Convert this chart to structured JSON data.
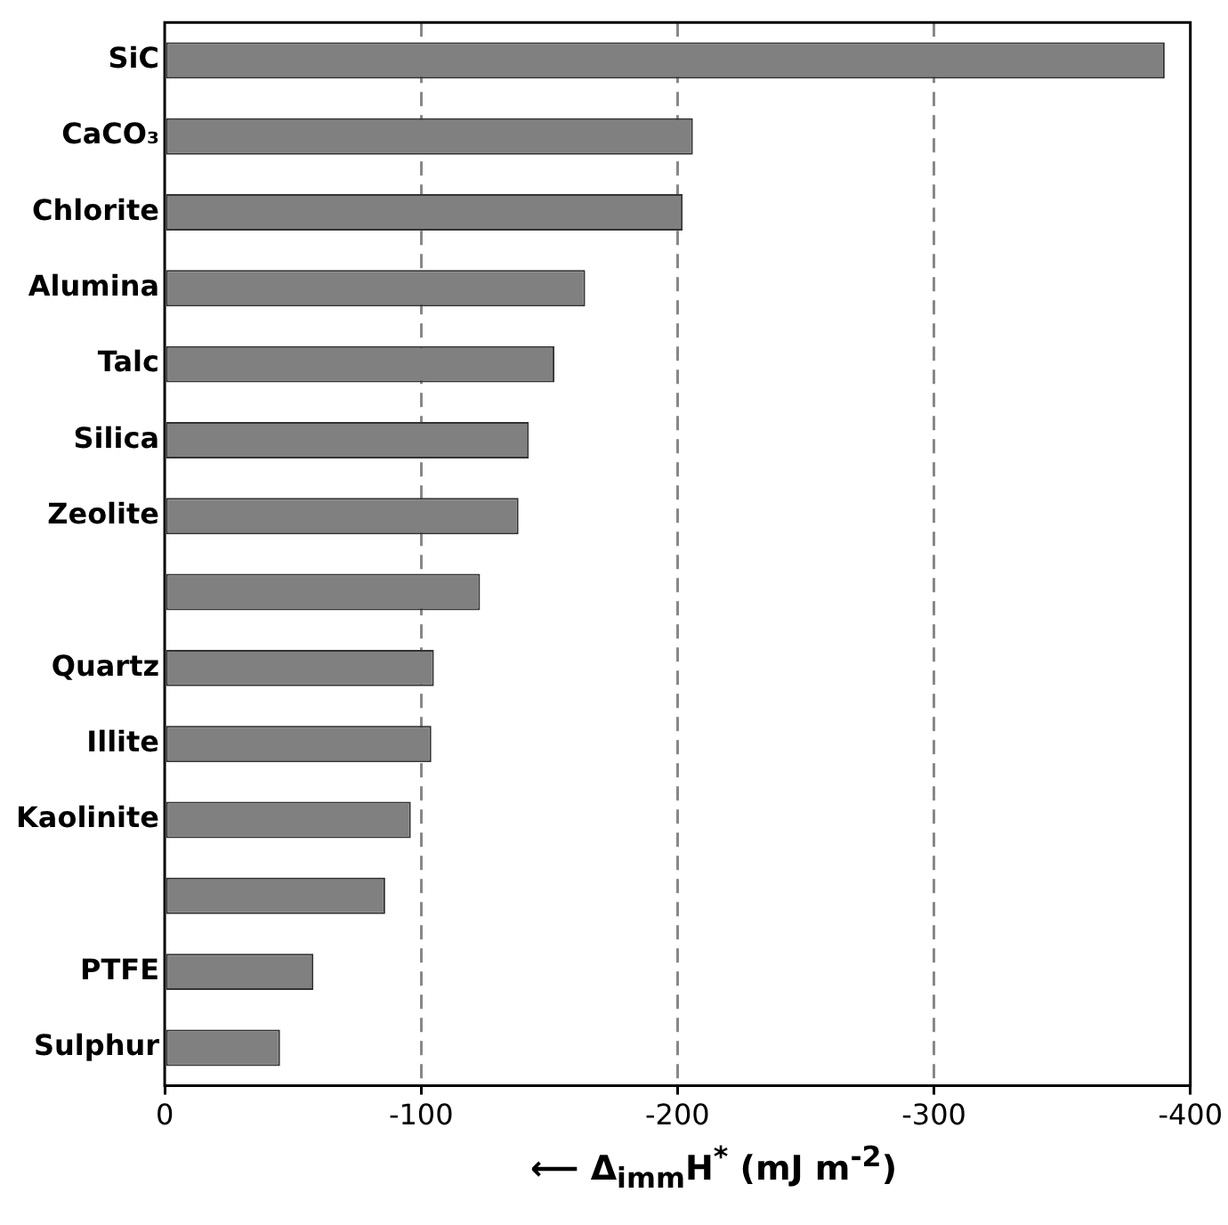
{
  "chart_data": {
    "type": "bar",
    "orientation": "horizontal",
    "categories": [
      "SiC",
      "CaCO₃",
      "Chlorite",
      "Alumina",
      "Talc",
      "Silica",
      "Zeolite",
      null,
      "Quartz",
      "Illite",
      "Kaolinite",
      null,
      "PTFE",
      "Sulphur"
    ],
    "values": [
      -390,
      -206,
      -202,
      -164,
      -152,
      -142,
      -138,
      -123,
      -105,
      -104,
      -96,
      -86,
      -58,
      -45
    ],
    "color": "#808080",
    "xlim": [
      0,
      -400
    ],
    "xticks": [
      0,
      -100,
      -200,
      -300,
      -400
    ],
    "xlabel": "⟵ Δ$_{imm}$H$^{*}$ (mJ m$^{-2}$)",
    "grid": "x"
  }
}
